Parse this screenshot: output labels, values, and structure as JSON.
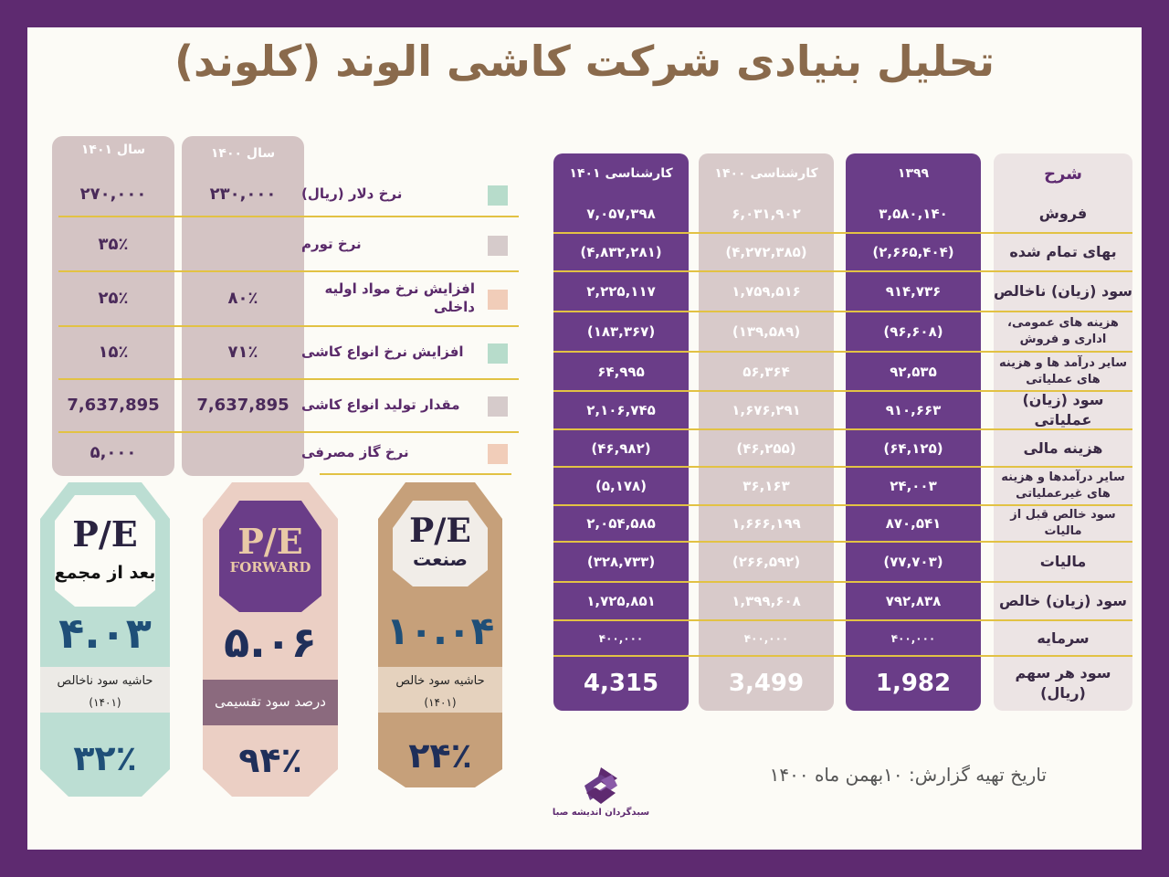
{
  "title": "تحلیل بنیادی  شرکت کاشی الوند (کلوند)",
  "income_table": {
    "label_header": "شرح",
    "columns": [
      {
        "header": "۱۳۹۹",
        "values": [
          "۳,۵۸۰,۱۴۰",
          "(۲,۶۶۵,۴۰۴)",
          "۹۱۴,۷۳۶",
          "(۹۶,۶۰۸)",
          "۹۲,۵۳۵",
          "۹۱۰,۶۶۳",
          "(۶۴,۱۲۵)",
          "۲۴,۰۰۳",
          "۸۷۰,۵۴۱",
          "(۷۷,۷۰۳)",
          "۷۹۲,۸۳۸",
          "۴۰۰,۰۰۰",
          "1,982"
        ]
      },
      {
        "header": "کارشناسی ۱۴۰۰",
        "values": [
          "۶,۰۳۱,۹۰۲",
          "(۴,۲۷۲,۳۸۵)",
          "۱,۷۵۹,۵۱۶",
          "(۱۳۹,۵۸۹)",
          "۵۶,۳۶۴",
          "۱,۶۷۶,۲۹۱",
          "(۴۶,۲۵۵)",
          "۳۶,۱۶۳",
          "۱,۶۶۶,۱۹۹",
          "(۲۶۶,۵۹۲)",
          "۱,۳۹۹,۶۰۸",
          "۴۰۰,۰۰۰",
          "3,499"
        ]
      },
      {
        "header": "کارشناسی ۱۴۰۱",
        "values": [
          "۷,۰۵۷,۳۹۸",
          "(۴,۸۳۲,۲۸۱)",
          "۲,۲۲۵,۱۱۷",
          "(۱۸۳,۳۶۷)",
          "۶۴,۹۹۵",
          "۲,۱۰۶,۷۴۵",
          "(۴۶,۹۸۲)",
          "(۵,۱۷۸)",
          "۲,۰۵۴,۵۸۵",
          "(۳۲۸,۷۳۳)",
          "۱,۷۲۵,۸۵۱",
          "۴۰۰,۰۰۰",
          "4,315"
        ]
      }
    ],
    "rows": [
      "فروش",
      "بهای تمام شده",
      "سود (زیان) ناخالص",
      "هزینه های عمومی، اداری و فروش",
      "سایر درآمد ها و هزینه های عملیاتی",
      "سود (زیان) عملیاتی",
      "هزینه مالی",
      "سایر درآمدها و هزینه های غیرعملیاتی",
      "سود خالص قبل از مالیات",
      "مالیات",
      "سود (زیان) خالص",
      "سرمایه",
      "سود هر سهم (ریال)"
    ]
  },
  "assumptions": {
    "headers": [
      "سال ۱۴۰۰",
      "سال ۱۴۰۱"
    ],
    "rows": [
      {
        "label": "نرخ دلار (ریال)",
        "y1400": "۲۳۰,۰۰۰",
        "y1401": "۲۷۰,۰۰۰",
        "color": "#b7dccb"
      },
      {
        "label": "نرخ تورم",
        "y1400": "",
        "y1401": "۳۵٪",
        "color": "#d6cbcb"
      },
      {
        "label": "افزایش نرخ مواد اولیه داخلی",
        "y1400": "۸۰٪",
        "y1401": "۲۵٪",
        "color": "#f1cdb9"
      },
      {
        "label": "افزایش نرخ انواع کاشی",
        "y1400": "۷۱٪",
        "y1401": "۱۵٪",
        "color": "#b7dccb"
      },
      {
        "label": "مقدار تولید انواع کاشی",
        "y1400": "7,637,895",
        "y1401": "7,637,895",
        "color": "#d6cbcb"
      },
      {
        "label": "نرخ گاز مصرفی",
        "y1400": "",
        "y1401": "۵,۰۰۰",
        "color": "#f1cdb9"
      }
    ]
  },
  "pe_cards": [
    {
      "pe": "P/E",
      "sub": "بعد از مجمع",
      "value": "۴.۰۳",
      "margin_label": "حاشیه سود ناخالص",
      "margin_year": "(۱۴۰۱)",
      "margin_value": "۳۲٪"
    },
    {
      "pe": "P/E",
      "sub": "FORWARD",
      "value": "۵.۰۶",
      "margin_label": "درصد سود تقسیمی",
      "margin_year": "",
      "margin_value": "۹۴٪"
    },
    {
      "pe": "P/E",
      "sub": "صنعت",
      "value": "۱۰.۰۴",
      "margin_label": "حاشیه سود خالص",
      "margin_year": "(۱۴۰۱)",
      "margin_value": "۲۴٪"
    }
  ],
  "footer": {
    "report_date": "تاریخ تهیه گزارش: ۱۰بهمن ماه ۱۴۰۰",
    "logo_text": "سبدگردان اندیشه صبا"
  },
  "colors": {
    "purple": "#5e2a70",
    "column_purple": "#6a3d88",
    "column_grey": "#d8caca",
    "gold": "#e2c244",
    "card_mint": "#bcded3",
    "card_pink": "#ebcfc4",
    "card_tan": "#c6a07a"
  }
}
